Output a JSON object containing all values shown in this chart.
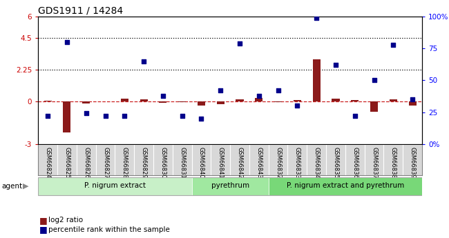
{
  "title": "GDS1911 / 14284",
  "samples": [
    "GSM66824",
    "GSM66825",
    "GSM66826",
    "GSM66827",
    "GSM66828",
    "GSM66829",
    "GSM66830",
    "GSM66831",
    "GSM66840",
    "GSM66841",
    "GSM66842",
    "GSM66843",
    "GSM66832",
    "GSM66833",
    "GSM66834",
    "GSM66835",
    "GSM66836",
    "GSM66837",
    "GSM66838",
    "GSM66839"
  ],
  "log2_ratio": [
    0.05,
    -2.2,
    -0.15,
    0.0,
    0.2,
    0.15,
    -0.1,
    -0.05,
    -0.3,
    -0.2,
    0.15,
    0.25,
    -0.05,
    0.1,
    3.0,
    0.2,
    0.1,
    -0.7,
    0.15,
    -0.3
  ],
  "percentile_rank": [
    22,
    80,
    24,
    22,
    22,
    65,
    38,
    22,
    20,
    42,
    79,
    38,
    42,
    30,
    99,
    62,
    22,
    50,
    78,
    35
  ],
  "groups": [
    {
      "label": "P. nigrum extract",
      "start": 0,
      "end": 7,
      "color": "#c8f0c8"
    },
    {
      "label": "pyrethrum",
      "start": 8,
      "end": 11,
      "color": "#a0e8a0"
    },
    {
      "label": "P. nigrum extract and pyrethrum",
      "start": 12,
      "end": 19,
      "color": "#78d878"
    }
  ],
  "ylim_left": [
    -3,
    6
  ],
  "ylim_right": [
    0,
    100
  ],
  "yticks_left": [
    -3,
    0,
    2.25,
    4.5,
    6
  ],
  "ytick_labels_left": [
    "-3",
    "0",
    "2.25",
    "4.5",
    "6"
  ],
  "yticks_right": [
    0,
    25,
    50,
    75,
    100
  ],
  "ytick_labels_right": [
    "0%",
    "25",
    "50",
    "75",
    "100%"
  ],
  "bar_color": "#8b1a1a",
  "dot_color": "#00008b",
  "dashed_line_color": "#cc2222",
  "bg_color": "#d8d8d8",
  "agent_arrow": "▶"
}
